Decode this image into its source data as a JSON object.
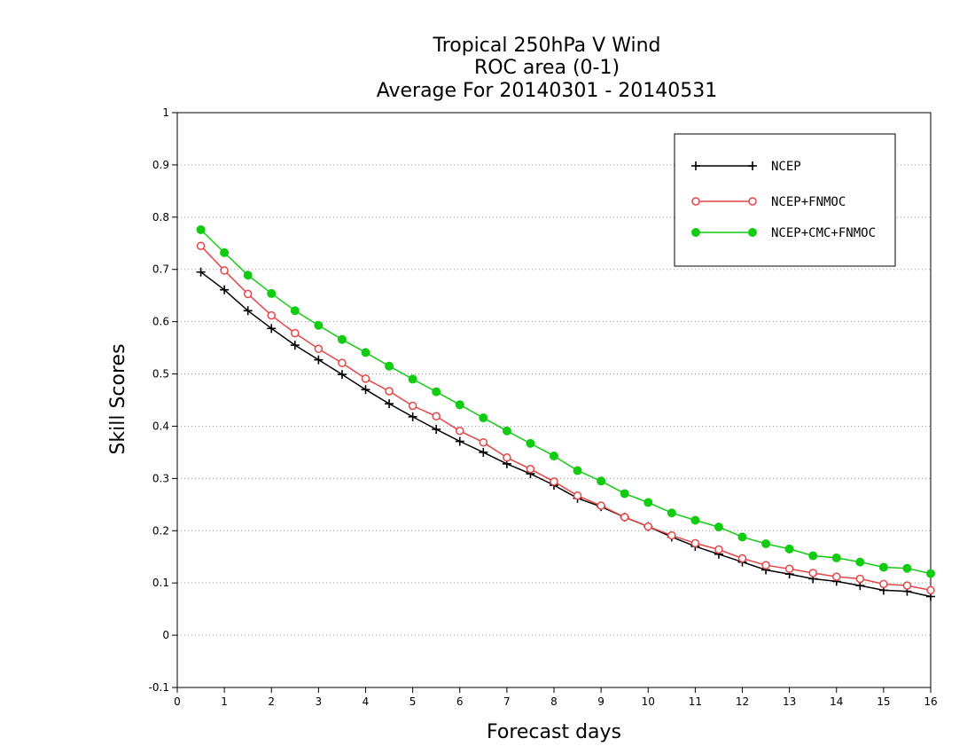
{
  "chart_data": {
    "type": "line",
    "title": [
      "Tropical 250hPa V Wind",
      "ROC area (0-1)",
      "Average For 20140301 - 20140531"
    ],
    "xlabel": "Forecast days",
    "ylabel": "Skill Scores",
    "xlim": [
      0,
      16
    ],
    "ylim": [
      -0.1,
      1
    ],
    "xticks": [
      "0",
      "1",
      "2",
      "3",
      "4",
      "5",
      "6",
      "7",
      "8",
      "9",
      "10",
      "11",
      "12",
      "13",
      "14",
      "15",
      "16"
    ],
    "yticks": [
      "-0.1",
      "0",
      "0.1",
      "0.2",
      "0.3",
      "0.4",
      "0.5",
      "0.6",
      "0.7",
      "0.8",
      "0.9",
      "1"
    ],
    "grid": "horizontal dotted",
    "legend_position": "top-right",
    "x": [
      0.5,
      1,
      1.5,
      2,
      2.5,
      3,
      3.5,
      4,
      4.5,
      5,
      5.5,
      6,
      6.5,
      7,
      7.5,
      8,
      8.5,
      9,
      9.5,
      10,
      10.5,
      11,
      11.5,
      12,
      12.5,
      13,
      13.5,
      14,
      14.5,
      15,
      15.5,
      16
    ],
    "series": [
      {
        "name": "NCEP",
        "color": "#000000",
        "marker": "plus",
        "values": [
          0.695,
          0.661,
          0.621,
          0.587,
          0.555,
          0.527,
          0.499,
          0.47,
          0.443,
          0.418,
          0.394,
          0.371,
          0.35,
          0.328,
          0.309,
          0.287,
          0.262,
          0.246,
          0.226,
          0.208,
          0.188,
          0.17,
          0.155,
          0.14,
          0.125,
          0.117,
          0.108,
          0.103,
          0.095,
          0.086,
          0.084,
          0.074
        ]
      },
      {
        "name": "NCEP+FNMOC",
        "color": "#e64545",
        "marker": "open-circle",
        "values": [
          0.745,
          0.698,
          0.653,
          0.612,
          0.578,
          0.548,
          0.521,
          0.491,
          0.467,
          0.439,
          0.419,
          0.391,
          0.369,
          0.34,
          0.318,
          0.294,
          0.267,
          0.248,
          0.226,
          0.208,
          0.191,
          0.176,
          0.164,
          0.147,
          0.134,
          0.127,
          0.119,
          0.112,
          0.108,
          0.098,
          0.095,
          0.086
        ]
      },
      {
        "name": "NCEP+CMC+FNMOC",
        "color": "#11cc11",
        "marker": "filled-circle",
        "values": [
          0.776,
          0.732,
          0.689,
          0.654,
          0.621,
          0.593,
          0.566,
          0.541,
          0.515,
          0.49,
          0.466,
          0.441,
          0.416,
          0.391,
          0.367,
          0.343,
          0.315,
          0.295,
          0.271,
          0.254,
          0.234,
          0.22,
          0.207,
          0.188,
          0.175,
          0.165,
          0.152,
          0.148,
          0.14,
          0.13,
          0.128,
          0.118
        ]
      }
    ]
  }
}
